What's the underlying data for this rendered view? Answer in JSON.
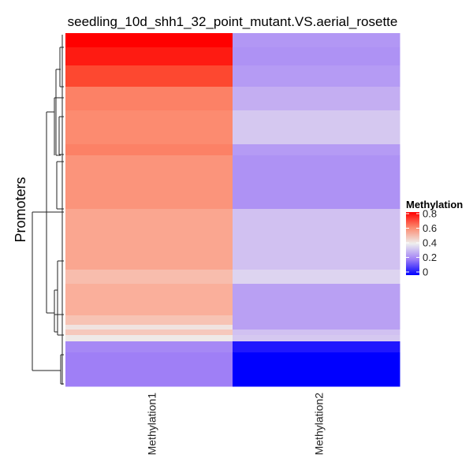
{
  "chart_data": {
    "type": "heatmap",
    "title": "seedling_10d_shh1_32_point_mutant.VS.aerial_rosette",
    "ylabel": "Promoters",
    "columns": [
      "Methylation1",
      "Methylation2"
    ],
    "row_dendrogram": true,
    "legend": {
      "title": "Methylation",
      "position": "right",
      "ticks": [
        "0",
        "0.2",
        "0.4",
        "0.6",
        "0.8"
      ],
      "range": [
        0,
        0.8
      ],
      "colors": {
        "low": "#0000FF",
        "mid": "#EEEEEE",
        "high": "#FF0000"
      }
    },
    "row_blocks": [
      {
        "n_rows": 18,
        "values": [
          0.8,
          0.25
        ]
      },
      {
        "n_rows": 23,
        "values": [
          0.77,
          0.24
        ]
      },
      {
        "n_rows": 27,
        "values": [
          0.72,
          0.26
        ]
      },
      {
        "n_rows": 30,
        "values": [
          0.62,
          0.3
        ]
      },
      {
        "n_rows": 43,
        "values": [
          0.6,
          0.34
        ]
      },
      {
        "n_rows": 14,
        "values": [
          0.62,
          0.26
        ]
      },
      {
        "n_rows": 68,
        "values": [
          0.58,
          0.24
        ]
      },
      {
        "n_rows": 77,
        "values": [
          0.54,
          0.33
        ]
      },
      {
        "n_rows": 18,
        "values": [
          0.49,
          0.36
        ]
      },
      {
        "n_rows": 40,
        "values": [
          0.52,
          0.27
        ]
      },
      {
        "n_rows": 12,
        "values": [
          0.48,
          0.27
        ]
      },
      {
        "n_rows": 6,
        "values": [
          0.42,
          0.27
        ]
      },
      {
        "n_rows": 7,
        "values": [
          0.47,
          0.33
        ]
      },
      {
        "n_rows": 8,
        "values": [
          0.41,
          0.34
        ]
      },
      {
        "n_rows": 14,
        "values": [
          0.22,
          0.03
        ]
      },
      {
        "n_rows": 43,
        "values": [
          0.2,
          0.0
        ]
      }
    ]
  }
}
